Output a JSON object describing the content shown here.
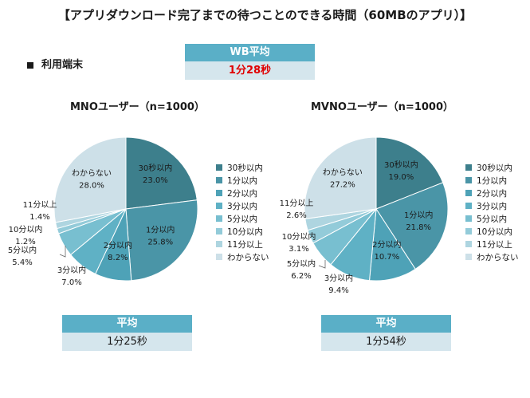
{
  "title": "【アプリダウンロード完了までの待つことのできる時間（60MBのアプリ）】",
  "section_label": "利用端末",
  "wb_box": {
    "header": "WB平均",
    "value": "1分28秒"
  },
  "colors": [
    "#3d7f8c",
    "#4a95a7",
    "#4ea2b7",
    "#5fb1c5",
    "#78bfd0",
    "#93cbd9",
    "#aed5e0",
    "#cde0e8"
  ],
  "legend": [
    "30秒以内",
    "1分以内",
    "2分以内",
    "3分以内",
    "5分以内",
    "10分以内",
    "11分以上",
    "わからない"
  ],
  "chart_data": [
    {
      "type": "pie",
      "title": "MNOユーザー（n=1000）",
      "categories": [
        "30秒以内",
        "1分以内",
        "2分以内",
        "3分以内",
        "5分以内",
        "10分以内",
        "11分以上",
        "わからない"
      ],
      "values": [
        23.0,
        25.8,
        8.2,
        7.0,
        5.4,
        1.2,
        1.4,
        28.0
      ],
      "value_labels": [
        "23.0%",
        "25.8%",
        "8.2%",
        "7.0%",
        "5.4%",
        "1.2%",
        "1.4%",
        "28.0%"
      ],
      "average_label": "平均",
      "average_value": "1分25秒"
    },
    {
      "type": "pie",
      "title": "MVNOユーザー（n=1000）",
      "categories": [
        "30秒以内",
        "1分以内",
        "2分以内",
        "3分以内",
        "5分以内",
        "10分以内",
        "11分以上",
        "わからない"
      ],
      "values": [
        19.0,
        21.8,
        10.7,
        9.4,
        6.2,
        3.1,
        2.6,
        27.2
      ],
      "value_labels": [
        "19.0%",
        "21.8%",
        "10.7%",
        "9.4%",
        "6.2%",
        "3.1%",
        "2.6%",
        "27.2%"
      ],
      "average_label": "平均",
      "average_value": "1分54秒"
    }
  ]
}
